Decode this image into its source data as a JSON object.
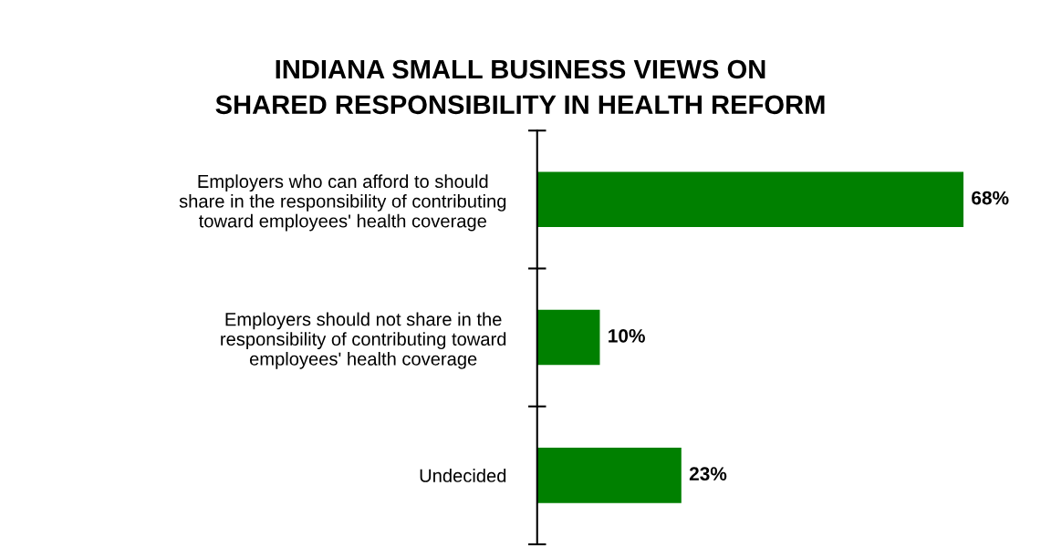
{
  "chart_data": {
    "type": "bar",
    "orientation": "horizontal",
    "title": "INDIANA SMALL BUSINESS VIEWS ON\nSHARED RESPONSIBILITY IN HEALTH REFORM",
    "categories": [
      "Employers who can afford to should\nshare in the responsibility of contributing\ntoward employees' health coverage",
      "Employers should not share in the\nresponsibility of contributing toward\nemployees' health coverage",
      "Undecided"
    ],
    "values": [
      68,
      10,
      23
    ],
    "color": "#008000",
    "value_labels": [
      "68%",
      "10%",
      "23%"
    ]
  }
}
